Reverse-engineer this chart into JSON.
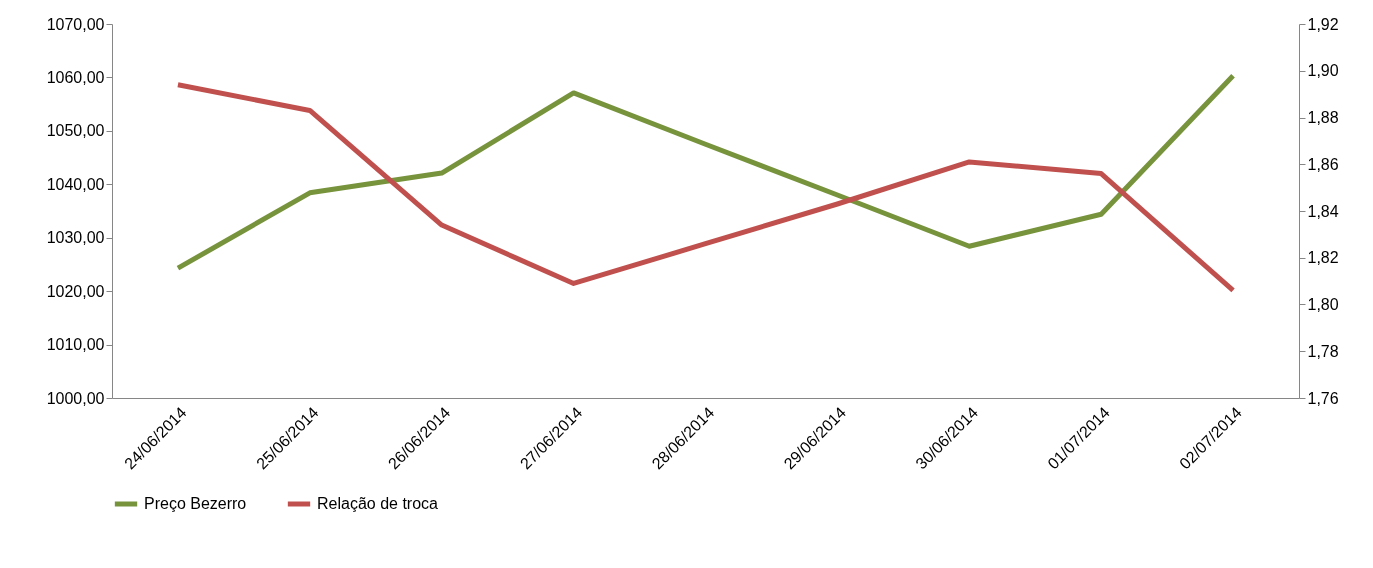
{
  "chart_data": {
    "type": "line",
    "categories": [
      "24/06/2014",
      "25/06/2014",
      "26/06/2014",
      "27/06/2014",
      "28/06/2014",
      "29/06/2014",
      "30/06/2014",
      "01/07/2014",
      "02/07/2014"
    ],
    "series": [
      {
        "name": "Preço Bezerro",
        "color": "#77933c",
        "values": [
          1024.3,
          1038.4,
          1042.1,
          1057.1,
          1047.5,
          1038.0,
          1028.4,
          1034.4,
          1060.3
        ]
      },
      {
        "name": "Relação de troca",
        "color": "#c0504d",
        "axis": "y2",
        "values": [
          1.894,
          1.883,
          1.834,
          1.809,
          1.826,
          1.843,
          1.861,
          1.856,
          1.806
        ]
      }
    ],
    "ylim": [
      1000,
      1070
    ],
    "yticks": [
      {
        "value": 1000,
        "label": "1000,00"
      },
      {
        "value": 1010,
        "label": "1010,00"
      },
      {
        "value": 1020,
        "label": "1020,00"
      },
      {
        "value": 1030,
        "label": "1030,00"
      },
      {
        "value": 1040,
        "label": "1040,00"
      },
      {
        "value": 1050,
        "label": "1050,00"
      },
      {
        "value": 1060,
        "label": "1060,00"
      },
      {
        "value": 1070,
        "label": "1070,00"
      }
    ],
    "y2lim": [
      1.76,
      1.92
    ],
    "y2ticks": [
      {
        "value": 1.76,
        "label": "1,76"
      },
      {
        "value": 1.78,
        "label": "1,78"
      },
      {
        "value": 1.8,
        "label": "1,80"
      },
      {
        "value": 1.82,
        "label": "1,82"
      },
      {
        "value": 1.84,
        "label": "1,84"
      },
      {
        "value": 1.86,
        "label": "1,86"
      },
      {
        "value": 1.88,
        "label": "1,88"
      },
      {
        "value": 1.9,
        "label": "1,90"
      },
      {
        "value": 1.92,
        "label": "1,92"
      }
    ],
    "grid": false,
    "legend": "bottom",
    "marker": "none",
    "line_style": "solid"
  }
}
